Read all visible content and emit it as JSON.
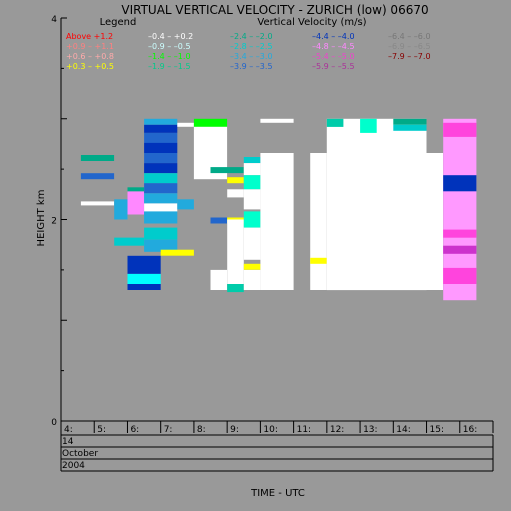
{
  "colors": {
    "background": "#999999",
    "plot_background": "#999999",
    "axis": "#000000"
  },
  "chart_data": {
    "type": "heatmap",
    "title": "VIRTUAL VERTICAL VELOCITY - ZURICH (low) 06670",
    "xlabel": "TIME - UTC",
    "ylabel": "HEIGHT km",
    "legend_title": "Legend",
    "legend_units": "Vertical Velocity (m/s)",
    "legend_placement": "top",
    "grid": false,
    "xlim": [
      4,
      17
    ],
    "ylim": [
      0,
      4
    ],
    "x_ticks": [
      "4:",
      "5:",
      "6:",
      "7:",
      "8:",
      "9:",
      "10:",
      "11:",
      "12:",
      "13:",
      "14:",
      "15:",
      "16:"
    ],
    "y_ticks": [
      "0",
      "2",
      "4"
    ],
    "date_rows": [
      "14",
      "October",
      "2004"
    ],
    "legend": [
      {
        "label": "Above  +1.2",
        "color": "#ff0000"
      },
      {
        "label": "+0.9 – +1.1",
        "color": "#ff8080"
      },
      {
        "label": "+0.6 – +0.8",
        "color": "#ffaaaa"
      },
      {
        "label": "+0.3 – +0.5",
        "color": "#ffff00"
      },
      {
        "label": "–0.4 – +0.2",
        "color": "#ffffff"
      },
      {
        "label": "–0.9 – –0.5",
        "color": "#ccffff"
      },
      {
        "label": "–1.4 – –1.0",
        "color": "#00ff00"
      },
      {
        "label": "–1.9 – –1.5",
        "color": "#00cc88"
      },
      {
        "label": "–2.4 – –2.0",
        "color": "#00aa88"
      },
      {
        "label": "–2.8 – –2.5",
        "color": "#00cccc"
      },
      {
        "label": "–3.4 – –3.0",
        "color": "#22aadd"
      },
      {
        "label": "–3.9 – –3.5",
        "color": "#2266cc"
      },
      {
        "label": "–4.4 – –4.0",
        "color": "#0033bb"
      },
      {
        "label": "–4.8 – –4.5",
        "color": "#ff88ff"
      },
      {
        "label": "–5.4 – –5.0",
        "color": "#ee44cc"
      },
      {
        "label": "–5.9 – –5.5",
        "color": "#aa3399"
      },
      {
        "label": "–6.4 – –6.0",
        "color": "#777777"
      },
      {
        "label": "–6.9 – –6.5",
        "color": "#888888"
      },
      {
        "label": "–7.9 – –7.0",
        "color": "#880000"
      }
    ],
    "cells": [
      {
        "t0": 4.6,
        "t1": 5.6,
        "h0": 2.58,
        "h1": 2.64,
        "color": "#00aa88"
      },
      {
        "t0": 4.6,
        "t1": 5.6,
        "h0": 2.4,
        "h1": 2.46,
        "color": "#2266cc"
      },
      {
        "t0": 4.6,
        "t1": 5.6,
        "h0": 2.14,
        "h1": 2.18,
        "color": "#ffffff"
      },
      {
        "t0": 5.6,
        "t1": 6.0,
        "h0": 2.0,
        "h1": 2.2,
        "color": "#22aadd"
      },
      {
        "t0": 6.0,
        "t1": 6.5,
        "h0": 2.05,
        "h1": 2.28,
        "color": "#ff88ff"
      },
      {
        "t0": 6.0,
        "t1": 6.5,
        "h0": 2.28,
        "h1": 2.32,
        "color": "#00aa88"
      },
      {
        "t0": 5.6,
        "t1": 6.5,
        "h0": 1.74,
        "h1": 1.82,
        "color": "#00cccc"
      },
      {
        "t0": 6.5,
        "t1": 7.5,
        "h0": 2.94,
        "h1": 3.0,
        "color": "#22aadd"
      },
      {
        "t0": 6.5,
        "t1": 7.5,
        "h0": 2.86,
        "h1": 2.94,
        "color": "#0033bb"
      },
      {
        "t0": 6.5,
        "t1": 7.5,
        "h0": 2.76,
        "h1": 2.86,
        "color": "#2266cc"
      },
      {
        "t0": 6.5,
        "t1": 7.5,
        "h0": 2.66,
        "h1": 2.76,
        "color": "#0033bb"
      },
      {
        "t0": 6.5,
        "t1": 7.5,
        "h0": 2.56,
        "h1": 2.66,
        "color": "#2266cc"
      },
      {
        "t0": 6.5,
        "t1": 7.5,
        "h0": 2.46,
        "h1": 2.56,
        "color": "#0033bb"
      },
      {
        "t0": 6.5,
        "t1": 7.5,
        "h0": 2.36,
        "h1": 2.46,
        "color": "#00cccc"
      },
      {
        "t0": 6.5,
        "t1": 7.5,
        "h0": 2.26,
        "h1": 2.36,
        "color": "#2266cc"
      },
      {
        "t0": 6.5,
        "t1": 7.5,
        "h0": 2.16,
        "h1": 2.26,
        "color": "#22aadd"
      },
      {
        "t0": 6.5,
        "t1": 7.5,
        "h0": 2.08,
        "h1": 2.16,
        "color": "#ffffff"
      },
      {
        "t0": 6.5,
        "t1": 7.5,
        "h0": 1.96,
        "h1": 2.08,
        "color": "#22aadd"
      },
      {
        "t0": 6.5,
        "t1": 7.5,
        "h0": 1.8,
        "h1": 1.92,
        "color": "#00cccc"
      },
      {
        "t0": 6.5,
        "t1": 7.5,
        "h0": 1.68,
        "h1": 1.8,
        "color": "#22aadd"
      },
      {
        "t0": 6.0,
        "t1": 7.0,
        "h0": 1.46,
        "h1": 1.64,
        "color": "#0033bb"
      },
      {
        "t0": 6.0,
        "t1": 7.0,
        "h0": 1.36,
        "h1": 1.46,
        "color": "#00ffff"
      },
      {
        "t0": 6.0,
        "t1": 7.0,
        "h0": 1.3,
        "h1": 1.36,
        "color": "#0033bb"
      },
      {
        "t0": 7.0,
        "t1": 8.0,
        "h0": 1.64,
        "h1": 1.7,
        "color": "#ffff00"
      },
      {
        "t0": 7.5,
        "t1": 8.0,
        "h0": 2.1,
        "h1": 2.2,
        "color": "#22aadd"
      },
      {
        "t0": 7.5,
        "t1": 8.0,
        "h0": 2.92,
        "h1": 2.96,
        "color": "#ffffff"
      },
      {
        "t0": 8.0,
        "t1": 9.0,
        "h0": 2.92,
        "h1": 3.0,
        "color": "#00ff00"
      },
      {
        "t0": 8.0,
        "t1": 9.0,
        "h0": 2.4,
        "h1": 2.92,
        "color": "#ffffff"
      },
      {
        "t0": 8.5,
        "t1": 9.5,
        "h0": 2.46,
        "h1": 2.52,
        "color": "#00aa88"
      },
      {
        "t0": 9.0,
        "t1": 9.5,
        "h0": 2.36,
        "h1": 2.42,
        "color": "#ffff00"
      },
      {
        "t0": 9.0,
        "t1": 9.5,
        "h0": 2.22,
        "h1": 2.3,
        "color": "#ffffff"
      },
      {
        "t0": 8.5,
        "t1": 9.0,
        "h0": 1.96,
        "h1": 2.02,
        "color": "#2266cc"
      },
      {
        "t0": 9.0,
        "t1": 9.5,
        "h0": 1.96,
        "h1": 2.02,
        "color": "#ffff00"
      },
      {
        "t0": 8.5,
        "t1": 9.0,
        "h0": 1.3,
        "h1": 1.5,
        "color": "#ffffff"
      },
      {
        "t0": 9.0,
        "t1": 9.5,
        "h0": 1.28,
        "h1": 1.36,
        "color": "#00ccaa"
      },
      {
        "t0": 9.0,
        "t1": 9.5,
        "h0": 1.36,
        "h1": 2.0,
        "color": "#ffffff"
      },
      {
        "t0": 9.5,
        "t1": 10.0,
        "h0": 2.56,
        "h1": 2.62,
        "color": "#00cccc"
      },
      {
        "t0": 9.5,
        "t1": 10.0,
        "h0": 2.44,
        "h1": 2.56,
        "color": "#ffffff"
      },
      {
        "t0": 9.5,
        "t1": 10.0,
        "h0": 2.3,
        "h1": 2.44,
        "color": "#00ffcc"
      },
      {
        "t0": 9.5,
        "t1": 10.0,
        "h0": 2.1,
        "h1": 2.3,
        "color": "#ffffff"
      },
      {
        "t0": 9.5,
        "t1": 10.0,
        "h0": 1.92,
        "h1": 2.08,
        "color": "#00ffcc"
      },
      {
        "t0": 9.5,
        "t1": 10.0,
        "h0": 1.6,
        "h1": 1.92,
        "color": "#ffffff"
      },
      {
        "t0": 9.5,
        "t1": 10.0,
        "h0": 1.5,
        "h1": 1.56,
        "color": "#ffff00"
      },
      {
        "t0": 9.5,
        "t1": 10.0,
        "h0": 1.3,
        "h1": 1.5,
        "color": "#ffffff"
      },
      {
        "t0": 10.0,
        "t1": 11.0,
        "h0": 2.96,
        "h1": 3.0,
        "color": "#ffffff"
      },
      {
        "t0": 10.0,
        "t1": 11.0,
        "h0": 1.3,
        "h1": 2.66,
        "color": "#ffffff"
      },
      {
        "t0": 11.5,
        "t1": 12.0,
        "h0": 1.3,
        "h1": 2.66,
        "color": "#ffffff"
      },
      {
        "t0": 11.5,
        "t1": 12.0,
        "h0": 1.56,
        "h1": 1.62,
        "color": "#ffff00"
      },
      {
        "t0": 12.0,
        "t1": 15.0,
        "h0": 1.3,
        "h1": 3.0,
        "color": "#ffffff"
      },
      {
        "t0": 12.0,
        "t1": 12.5,
        "h0": 2.92,
        "h1": 3.0,
        "color": "#00ccaa"
      },
      {
        "t0": 13.0,
        "t1": 13.5,
        "h0": 2.86,
        "h1": 3.0,
        "color": "#00ffcc"
      },
      {
        "t0": 14.0,
        "t1": 15.0,
        "h0": 2.94,
        "h1": 3.0,
        "color": "#00aa88"
      },
      {
        "t0": 14.0,
        "t1": 15.0,
        "h0": 2.88,
        "h1": 2.94,
        "color": "#00cccc"
      },
      {
        "t0": 15.0,
        "t1": 15.5,
        "h0": 1.3,
        "h1": 2.66,
        "color": "#ffffff"
      },
      {
        "t0": 15.5,
        "t1": 16.5,
        "h0": 1.2,
        "h1": 3.0,
        "color": "#ff99ff"
      },
      {
        "t0": 15.5,
        "t1": 16.5,
        "h0": 2.82,
        "h1": 2.96,
        "color": "#ff44dd"
      },
      {
        "t0": 15.5,
        "t1": 16.5,
        "h0": 2.28,
        "h1": 2.44,
        "color": "#0033bb"
      },
      {
        "t0": 15.5,
        "t1": 16.5,
        "h0": 1.82,
        "h1": 1.9,
        "color": "#ff44dd"
      },
      {
        "t0": 15.5,
        "t1": 16.5,
        "h0": 1.66,
        "h1": 1.74,
        "color": "#cc33cc"
      },
      {
        "t0": 15.5,
        "t1": 16.5,
        "h0": 1.36,
        "h1": 1.52,
        "color": "#ff44dd"
      }
    ]
  }
}
